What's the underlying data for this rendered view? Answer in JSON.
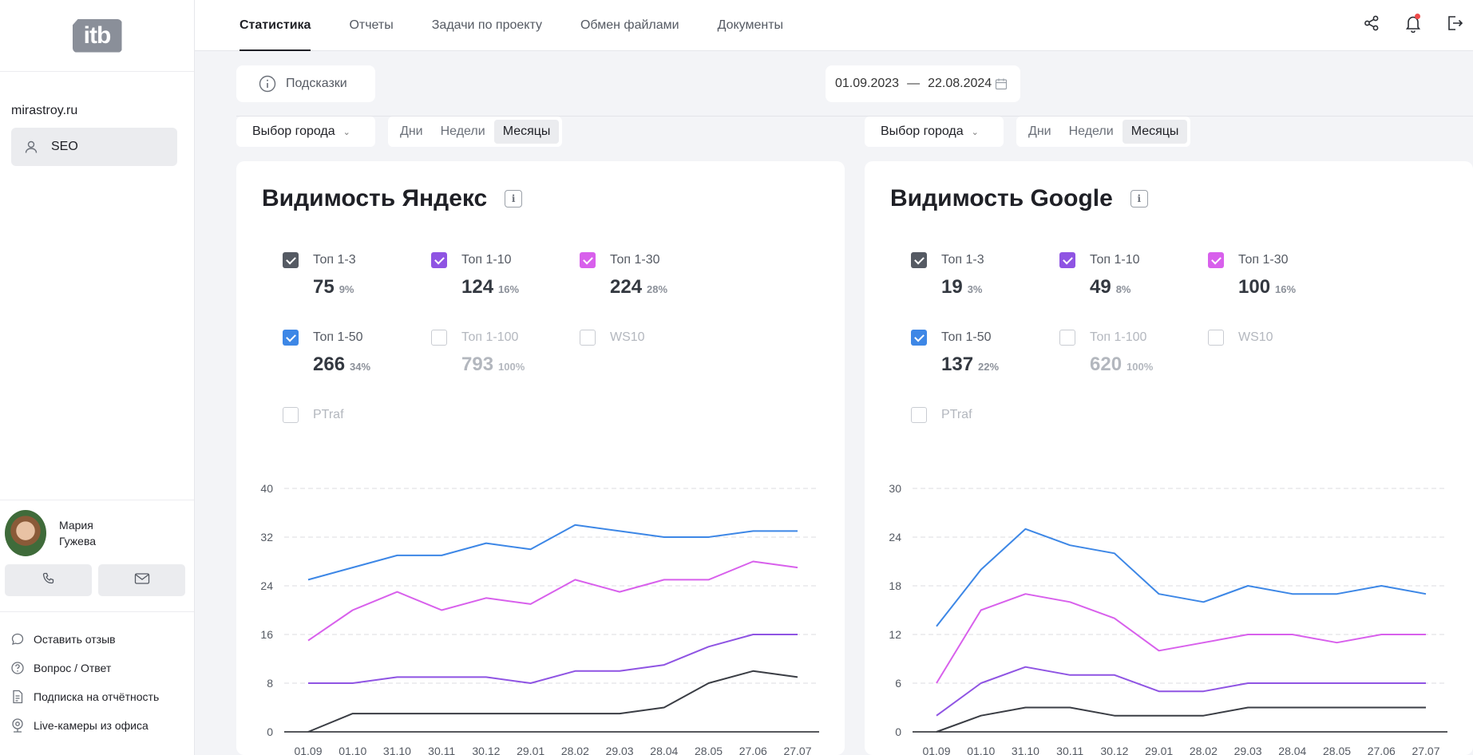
{
  "sidebar": {
    "logo": "itb",
    "site": "mirastroy.ru",
    "seo_label": "SEO",
    "manager_name_1": "Мария",
    "manager_name_2": "Гужева",
    "links": [
      {
        "label": "Оставить отзыв",
        "icon": "chat-icon"
      },
      {
        "label": "Вопрос / Ответ",
        "icon": "question-icon"
      },
      {
        "label": "Подписка на отчётность",
        "icon": "document-icon"
      },
      {
        "label": "Live-камеры из офиса",
        "icon": "webcam-icon"
      }
    ]
  },
  "nav": {
    "tabs": [
      "Статистика",
      "Отчеты",
      "Задачи по проекту",
      "Обмен файлами",
      "Документы"
    ],
    "active": 0
  },
  "controls": {
    "hints_label": "Подсказки",
    "date_from": "01.09.2023",
    "date_sep": "—",
    "date_to": "22.08.2024",
    "city_label": "Выбор города",
    "periods": [
      "Дни",
      "Недели",
      "Месяцы"
    ],
    "period_selected": 2
  },
  "colors": {
    "top3": "#555a63",
    "top10": "#8f54e3",
    "top30": "#d860ec",
    "top50": "#3d87e6"
  },
  "cards": [
    {
      "title": "Видимость Яндекс",
      "metrics": [
        {
          "label": "Топ 1-3",
          "value": "75",
          "pct": "9%",
          "checked": true,
          "color": "#555a63"
        },
        {
          "label": "Топ 1-10",
          "value": "124",
          "pct": "16%",
          "checked": true,
          "color": "#8f54e3"
        },
        {
          "label": "Топ 1-30",
          "value": "224",
          "pct": "28%",
          "checked": true,
          "color": "#d860ec"
        },
        {
          "label": "Топ 1-50",
          "value": "266",
          "pct": "34%",
          "checked": true,
          "color": "#3d87e6"
        },
        {
          "label": "Топ 1-100",
          "value": "793",
          "pct": "100%",
          "checked": false,
          "color": ""
        },
        {
          "label": "WS10",
          "value": "",
          "pct": "",
          "checked": false,
          "color": ""
        },
        {
          "label": "PTraf",
          "value": "",
          "pct": "",
          "checked": false,
          "color": ""
        }
      ]
    },
    {
      "title": "Видимость Google",
      "metrics": [
        {
          "label": "Топ 1-3",
          "value": "19",
          "pct": "3%",
          "checked": true,
          "color": "#555a63"
        },
        {
          "label": "Топ 1-10",
          "value": "49",
          "pct": "8%",
          "checked": true,
          "color": "#8f54e3"
        },
        {
          "label": "Топ 1-30",
          "value": "100",
          "pct": "16%",
          "checked": true,
          "color": "#d860ec"
        },
        {
          "label": "Топ 1-50",
          "value": "137",
          "pct": "22%",
          "checked": true,
          "color": "#3d87e6"
        },
        {
          "label": "Топ 1-100",
          "value": "620",
          "pct": "100%",
          "checked": false,
          "color": ""
        },
        {
          "label": "WS10",
          "value": "",
          "pct": "",
          "checked": false,
          "color": ""
        },
        {
          "label": "PTraf",
          "value": "",
          "pct": "",
          "checked": false,
          "color": ""
        }
      ]
    }
  ],
  "chart_data": [
    {
      "type": "line",
      "title": "",
      "x": [
        "01.09",
        "01.10",
        "31.10",
        "30.11",
        "30.12",
        "29.01",
        "28.02",
        "29.03",
        "28.04",
        "28.05",
        "27.06",
        "27.07"
      ],
      "ylim": [
        0,
        40
      ],
      "yticks": [
        0,
        8,
        16,
        24,
        32,
        40
      ],
      "grid": true,
      "series": [
        {
          "values": [
            25,
            27,
            29,
            29,
            31,
            30,
            34,
            33,
            32,
            32,
            33,
            33
          ],
          "color": "#3d87e6"
        },
        {
          "values": [
            15,
            20,
            23,
            20,
            22,
            21,
            25,
            23,
            25,
            25,
            28,
            27
          ],
          "color": "#d860ec"
        },
        {
          "values": [
            8,
            8,
            9,
            9,
            9,
            8,
            10,
            10,
            11,
            14,
            16,
            16
          ],
          "color": "#8f54e3"
        },
        {
          "values": [
            0,
            3,
            3,
            3,
            3,
            3,
            3,
            3,
            4,
            8,
            10,
            9
          ],
          "color": "#3a3d44"
        }
      ]
    },
    {
      "type": "line",
      "title": "",
      "x": [
        "01.09",
        "01.10",
        "31.10",
        "30.11",
        "30.12",
        "29.01",
        "28.02",
        "29.03",
        "28.04",
        "28.05",
        "27.06",
        "27.07"
      ],
      "ylim": [
        0,
        30
      ],
      "yticks": [
        0,
        6,
        12,
        18,
        24,
        30
      ],
      "grid": true,
      "series": [
        {
          "values": [
            13,
            20,
            25,
            23,
            22,
            17,
            16,
            18,
            17,
            17,
            18,
            17
          ],
          "color": "#3d87e6"
        },
        {
          "values": [
            6,
            15,
            17,
            16,
            14,
            10,
            11,
            12,
            12,
            11,
            12,
            12
          ],
          "color": "#d860ec"
        },
        {
          "values": [
            2,
            6,
            8,
            7,
            7,
            5,
            5,
            6,
            6,
            6,
            6,
            6
          ],
          "color": "#8f54e3"
        },
        {
          "values": [
            0,
            2,
            3,
            3,
            2,
            2,
            2,
            3,
            3,
            3,
            3,
            3
          ],
          "color": "#3a3d44"
        }
      ]
    }
  ]
}
